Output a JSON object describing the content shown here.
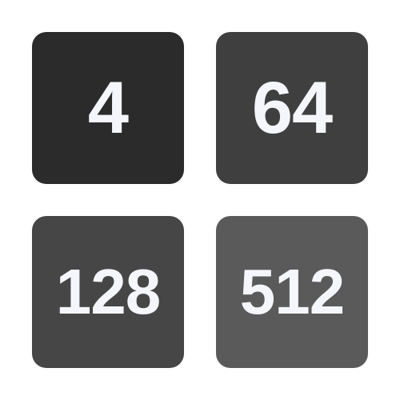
{
  "tiles": [
    {
      "value": "4",
      "color": "#2b2b2b"
    },
    {
      "value": "64",
      "color": "#3f3f3f"
    },
    {
      "value": "128",
      "color": "#464646"
    },
    {
      "value": "512",
      "color": "#5a5a5a"
    }
  ],
  "text_color": "#f4f6fb"
}
